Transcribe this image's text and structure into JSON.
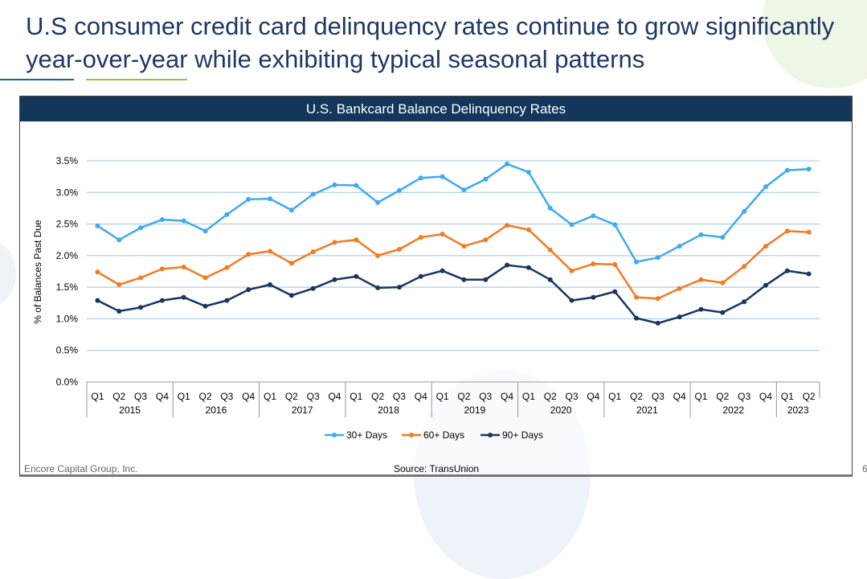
{
  "title": "U.S consumer credit card delinquency rates continue to grow significantly year-over-year while exhibiting typical seasonal patterns",
  "footer": {
    "company": "Encore Capital Group, Inc.",
    "source": "Source: TransUnion",
    "page": "6"
  },
  "chart_data": {
    "type": "line",
    "title": "U.S. Bankcard Balance Delinquency Rates",
    "ylabel": "% of Balances Past Due",
    "xlabel": "",
    "ylim": [
      0,
      3.5
    ],
    "yticks": [
      "0.0%",
      "0.5%",
      "1.0%",
      "1.5%",
      "2.0%",
      "2.5%",
      "3.0%",
      "3.5%"
    ],
    "grid": true,
    "legend": "bottom",
    "quarters": [
      "Q1",
      "Q2",
      "Q3",
      "Q4",
      "Q1",
      "Q2",
      "Q3",
      "Q4",
      "Q1",
      "Q2",
      "Q3",
      "Q4",
      "Q1",
      "Q2",
      "Q3",
      "Q4",
      "Q1",
      "Q2",
      "Q3",
      "Q4",
      "Q1",
      "Q2",
      "Q3",
      "Q4",
      "Q1",
      "Q2",
      "Q3",
      "Q4",
      "Q1",
      "Q2",
      "Q3",
      "Q4",
      "Q1",
      "Q2"
    ],
    "years": [
      "2015",
      "2016",
      "2017",
      "2018",
      "2019",
      "2020",
      "2021",
      "2022",
      "2023"
    ],
    "series": [
      {
        "name": "30+ Days",
        "color": "#3fa9f5",
        "values": [
          2.47,
          2.25,
          2.44,
          2.57,
          2.55,
          2.39,
          2.65,
          2.89,
          2.9,
          2.72,
          2.97,
          3.12,
          3.11,
          2.84,
          3.03,
          3.23,
          3.25,
          3.04,
          3.21,
          3.45,
          3.32,
          2.75,
          2.49,
          2.63,
          2.49,
          1.9,
          1.97,
          2.15,
          2.33,
          2.29,
          2.7,
          3.09,
          3.35,
          3.37
        ]
      },
      {
        "name": "60+ Days",
        "color": "#f47b20",
        "values": [
          1.74,
          1.54,
          1.65,
          1.79,
          1.82,
          1.65,
          1.81,
          2.02,
          2.07,
          1.88,
          2.06,
          2.21,
          2.25,
          2.0,
          2.1,
          2.29,
          2.34,
          2.15,
          2.25,
          2.48,
          2.41,
          2.09,
          1.76,
          1.87,
          1.86,
          1.34,
          1.32,
          1.48,
          1.62,
          1.57,
          1.83,
          2.15,
          2.39,
          2.37
        ]
      },
      {
        "name": "90+ Days",
        "color": "#17375e",
        "values": [
          1.29,
          1.12,
          1.18,
          1.29,
          1.34,
          1.2,
          1.29,
          1.46,
          1.54,
          1.37,
          1.48,
          1.62,
          1.67,
          1.49,
          1.5,
          1.67,
          1.76,
          1.62,
          1.62,
          1.85,
          1.81,
          1.62,
          1.29,
          1.34,
          1.43,
          1.01,
          0.93,
          1.03,
          1.15,
          1.1,
          1.27,
          1.53,
          1.76,
          1.71
        ]
      }
    ]
  }
}
